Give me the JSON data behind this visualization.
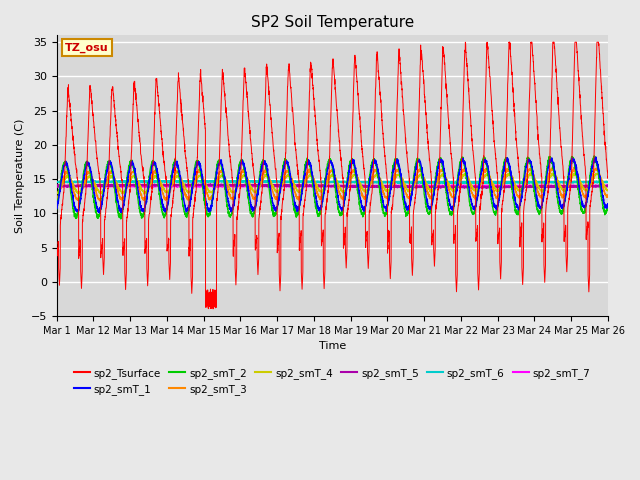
{
  "title": "SP2 Soil Temperature",
  "xlabel": "Time",
  "ylabel": "Soil Temperature (C)",
  "ylim": [
    -5,
    36
  ],
  "yticks": [
    -5,
    0,
    5,
    10,
    15,
    20,
    25,
    30,
    35
  ],
  "date_labels": [
    "Mar 1⁠",
    "Mar 12",
    "Mar 13",
    "Mar 14",
    "Mar 15",
    "Mar 16",
    "Mar 17",
    "Mar 18",
    "Mar 19",
    "Mar 20",
    "Mar 21",
    "Mar 22",
    "Mar 23",
    "Mar 24",
    "Mar 25",
    "Mar 26"
  ],
  "annotation_text": "TZ_osu",
  "annotation_color": "#cc0000",
  "annotation_bg": "#ffffcc",
  "annotation_border": "#cc8800",
  "series_colors": {
    "sp2_Tsurface": "#ff0000",
    "sp2_smT_1": "#0000ff",
    "sp2_smT_2": "#00cc00",
    "sp2_smT_3": "#ff8800",
    "sp2_smT_4": "#cccc00",
    "sp2_smT_5": "#aa00aa",
    "sp2_smT_6": "#00cccc",
    "sp2_smT_7": "#ff00ff"
  },
  "fig_bg": "#e8e8e8",
  "plot_bg": "#d8d8d8",
  "grid_color": "#ffffff",
  "n_days": 25,
  "points_per_day": 144
}
